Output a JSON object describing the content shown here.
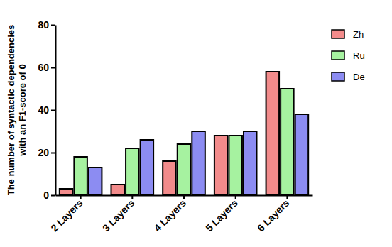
{
  "chart_data": {
    "type": "bar",
    "y_label": [
      "The number of syntactic dependencies",
      "with an F1-score of 0"
    ],
    "categories": [
      "2 Layers",
      "3 Layers",
      "4 Layers",
      "5 Layers",
      "6 Layers"
    ],
    "series": [
      {
        "name": "Zh",
        "color": "#F28B8B",
        "values": [
          3,
          5,
          16,
          28,
          58
        ]
      },
      {
        "name": "Ru",
        "color": "#A6F2A0",
        "values": [
          18,
          22,
          24,
          28,
          50
        ]
      },
      {
        "name": "De",
        "color": "#8C8CF2",
        "values": [
          13,
          26,
          30,
          30,
          38
        ]
      }
    ],
    "ylim": [
      0,
      80
    ],
    "yticks": [
      0,
      20,
      40,
      60,
      80
    ],
    "legend": "right"
  }
}
